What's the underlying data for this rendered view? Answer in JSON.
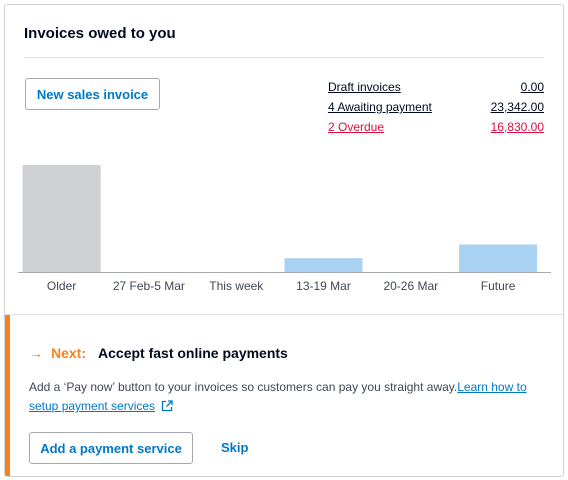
{
  "card": {
    "title": "Invoices owed to you",
    "new_invoice_label": "New sales invoice"
  },
  "summary": [
    {
      "label": "Draft invoices",
      "value": "0.00",
      "status": "normal"
    },
    {
      "label": "4 Awaiting payment",
      "value": "23,342.00",
      "status": "normal"
    },
    {
      "label": "2 Overdue",
      "value": "16,830.00",
      "status": "overdue"
    }
  ],
  "chart_data": {
    "type": "bar",
    "categories": [
      "Older",
      "27 Feb-5 Mar",
      "This week",
      "13-19 Mar",
      "20-26 Mar",
      "Future"
    ],
    "values": [
      17100,
      0,
      0,
      2200,
      0,
      4400
    ],
    "colors": [
      "#cfd0d3",
      "#a9d1f1",
      "#a9d1f1",
      "#a9d1f1",
      "#a9d1f1",
      "#a9d1f1"
    ],
    "ylim": [
      0,
      17100
    ],
    "grid": false,
    "legend": "none"
  },
  "next": {
    "tag": "Next:",
    "heading": "Accept fast online payments",
    "body": "Add a ‘Pay now’ button to your invoices so customers can pay you straight away.",
    "link": "Learn how to setup payment services",
    "add_label": "Add a payment service",
    "skip_label": "Skip"
  },
  "colors": {
    "accent": "#f5821f",
    "link": "#0078c8",
    "overdue": "#de0e40"
  }
}
